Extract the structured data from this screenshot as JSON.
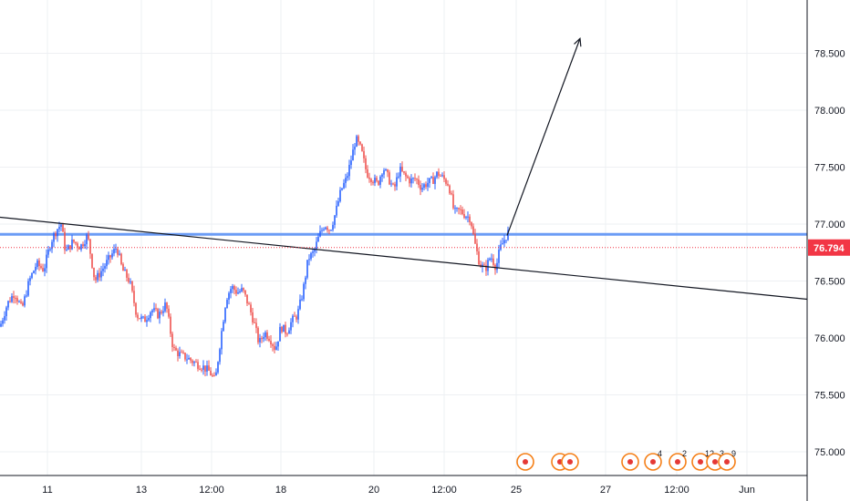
{
  "chart_data": {
    "type": "candlestick",
    "title": "",
    "xlabel": "",
    "ylabel": "",
    "y_axis_position": "right",
    "grid": true,
    "ylim": [
      74.85,
      79.05
    ],
    "y_ticks": [
      "75.000",
      "75.500",
      "76.000",
      "76.500",
      "77.000",
      "77.500",
      "78.000",
      "78.500"
    ],
    "x_ticks": [
      "11",
      "13",
      "12:00",
      "18",
      "20",
      "12:00",
      "25",
      "27",
      "12:00",
      "Jun"
    ],
    "current_price": "76.794",
    "horizontal_level": 76.91,
    "close_path": [
      [
        0,
        76.1
      ],
      [
        8,
        76.3
      ],
      [
        16,
        76.4
      ],
      [
        24,
        76.25
      ],
      [
        32,
        76.5
      ],
      [
        40,
        76.65
      ],
      [
        48,
        76.6
      ],
      [
        56,
        76.85
      ],
      [
        62,
        76.95
      ],
      [
        67,
        77.0
      ],
      [
        72,
        76.75
      ],
      [
        80,
        76.85
      ],
      [
        88,
        76.8
      ],
      [
        96,
        76.9
      ],
      [
        104,
        76.5
      ],
      [
        112,
        76.6
      ],
      [
        120,
        76.7
      ],
      [
        128,
        76.8
      ],
      [
        134,
        76.6
      ],
      [
        142,
        76.5
      ],
      [
        150,
        76.2
      ],
      [
        158,
        76.15
      ],
      [
        166,
        76.25
      ],
      [
        174,
        76.2
      ],
      [
        182,
        76.3
      ],
      [
        190,
        75.9
      ],
      [
        198,
        75.85
      ],
      [
        206,
        75.82
      ],
      [
        214,
        75.78
      ],
      [
        222,
        75.75
      ],
      [
        230,
        75.7
      ],
      [
        236,
        75.62
      ],
      [
        242,
        76.0
      ],
      [
        248,
        76.35
      ],
      [
        254,
        76.45
      ],
      [
        260,
        76.4
      ],
      [
        266,
        76.42
      ],
      [
        272,
        76.3
      ],
      [
        278,
        76.15
      ],
      [
        284,
        75.95
      ],
      [
        290,
        76.05
      ],
      [
        296,
        76.0
      ],
      [
        302,
        75.9
      ],
      [
        308,
        76.1
      ],
      [
        314,
        76.05
      ],
      [
        320,
        76.15
      ],
      [
        326,
        76.2
      ],
      [
        332,
        76.4
      ],
      [
        338,
        76.7
      ],
      [
        344,
        76.75
      ],
      [
        350,
        76.9
      ],
      [
        356,
        77.0
      ],
      [
        362,
        76.95
      ],
      [
        368,
        77.1
      ],
      [
        374,
        77.3
      ],
      [
        380,
        77.4
      ],
      [
        386,
        77.6
      ],
      [
        390,
        77.75
      ],
      [
        396,
        77.65
      ],
      [
        402,
        77.45
      ],
      [
        408,
        77.4
      ],
      [
        414,
        77.35
      ],
      [
        420,
        77.5
      ],
      [
        426,
        77.4
      ],
      [
        432,
        77.3
      ],
      [
        438,
        77.48
      ],
      [
        444,
        77.42
      ],
      [
        450,
        77.38
      ],
      [
        456,
        77.4
      ],
      [
        462,
        77.32
      ],
      [
        468,
        77.36
      ],
      [
        474,
        77.38
      ],
      [
        480,
        77.45
      ],
      [
        486,
        77.4
      ],
      [
        492,
        77.35
      ],
      [
        498,
        77.1
      ],
      [
        504,
        77.12
      ],
      [
        510,
        77.08
      ],
      [
        516,
        77.05
      ],
      [
        520,
        76.85
      ],
      [
        526,
        76.65
      ],
      [
        532,
        76.6
      ],
      [
        538,
        76.72
      ],
      [
        544,
        76.62
      ],
      [
        548,
        76.78
      ],
      [
        554,
        76.88
      ],
      [
        558,
        76.94
      ]
    ],
    "trendlines": [
      {
        "x1": 0,
        "y1": 77.06,
        "x2": 885,
        "y2": 76.34
      },
      {
        "x1": 556,
        "y1": 76.9,
        "x2": 636,
        "y2": 78.63,
        "arrow": true
      }
    ],
    "events": [
      {
        "x": 576,
        "label": ""
      },
      {
        "x": 614,
        "label": ""
      },
      {
        "x": 625,
        "label": ""
      },
      {
        "x": 691,
        "label": ""
      },
      {
        "x": 716,
        "label": "4"
      },
      {
        "x": 743,
        "label": "2"
      },
      {
        "x": 768,
        "label": "12"
      },
      {
        "x": 784,
        "label": "3"
      },
      {
        "x": 797,
        "label": "9"
      }
    ],
    "colors": {
      "up": "#2962ff",
      "down": "#ef5350",
      "level": "#6b9cf5",
      "trend": "#131722",
      "price_line": "#f23645",
      "event": "#f57f17",
      "grid": "#eef0f3"
    }
  }
}
